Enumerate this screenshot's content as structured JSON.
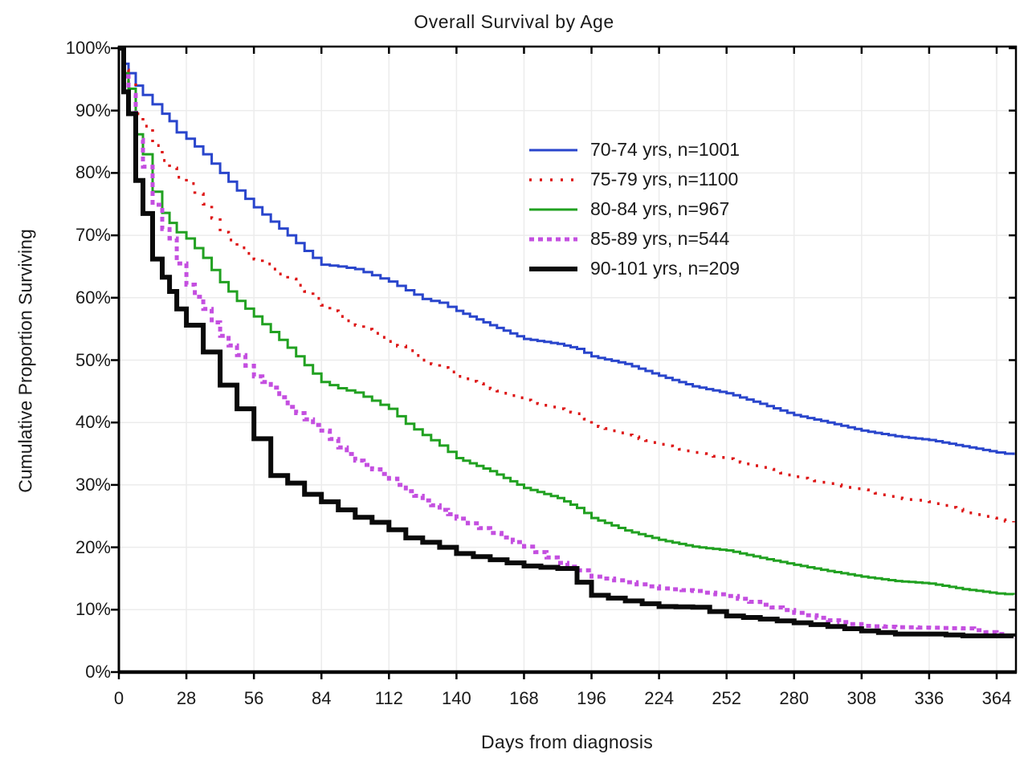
{
  "title": "Overall Survival by Age",
  "chart_data": {
    "type": "line",
    "subtype": "kaplan-meier-step-survival",
    "title": "Overall Survival by Age",
    "xlabel": "Days from diagnosis",
    "ylabel": "Cumulative Proportion Surviving",
    "x_max_days": 372,
    "ylim_percent": [
      0,
      100
    ],
    "grid": true,
    "grid_color": "#ececec",
    "frame_color": "#000000",
    "legend_position": "inside-upper-right",
    "x_ticks_days": [
      0,
      28,
      56,
      84,
      112,
      140,
      168,
      196,
      224,
      252,
      280,
      308,
      336,
      364
    ],
    "x_tick_labels": [
      "0",
      "28",
      "56",
      "84",
      "112",
      "140",
      "168",
      "196",
      "224",
      "252",
      "280",
      "308",
      "336",
      "364"
    ],
    "y_ticks_percent": [
      0,
      10,
      20,
      30,
      40,
      50,
      60,
      70,
      80,
      90,
      100
    ],
    "y_tick_labels": [
      "0%",
      "10%",
      "20%",
      "30%",
      "40%",
      "50%",
      "60%",
      "70%",
      "80%",
      "90%",
      "100%"
    ],
    "days": [
      0,
      2,
      4,
      7,
      10,
      14,
      18,
      21,
      24,
      28,
      35,
      42,
      49,
      56,
      63,
      70,
      77,
      84,
      91,
      98,
      105,
      112,
      119,
      126,
      133,
      140,
      154,
      168,
      182,
      190,
      196,
      210,
      224,
      238,
      252,
      266,
      280,
      294,
      308,
      322,
      336,
      350,
      364,
      371
    ],
    "series": [
      {
        "label": "70-74 yrs, n=1001",
        "age_group": "70-74 yrs",
        "n": 1001,
        "color": "#2945cc",
        "line_style": "solid",
        "line_width": 3,
        "values_percent": [
          100,
          97.5,
          96,
          94,
          92.5,
          91,
          89.5,
          88.3,
          86.5,
          85.5,
          83,
          80,
          77.2,
          74.5,
          72.2,
          70,
          67.5,
          65.3,
          65,
          64.6,
          63.6,
          62.6,
          61.2,
          59.8,
          59.2,
          57.9,
          55.6,
          53.4,
          52.6,
          51.8,
          50.6,
          49.4,
          47.5,
          45.8,
          44.7,
          43,
          41.2,
          40,
          38.7,
          37.8,
          37.2,
          36.2,
          35.2,
          34.8
        ]
      },
      {
        "label": "75-79 yrs, n=1100",
        "age_group": "75-79 yrs",
        "n": 1100,
        "color": "#dd1414",
        "line_style": "dotted",
        "line_width": 3.5,
        "values_percent": [
          100,
          96.5,
          94.5,
          89.5,
          87.5,
          84.4,
          82,
          80.8,
          79.3,
          78.3,
          75,
          70.5,
          68,
          66.2,
          64.6,
          63,
          61,
          58.8,
          57,
          55.6,
          54.3,
          53,
          51.5,
          50,
          48.8,
          47.4,
          45.4,
          43.6,
          42.2,
          41.4,
          39.7,
          38,
          36.5,
          35.2,
          34.2,
          32.8,
          31.3,
          30.2,
          29.2,
          27.9,
          27.3,
          25.8,
          24.4,
          24
        ]
      },
      {
        "label": "80-84 yrs, n=967",
        "age_group": "80-84 yrs",
        "n": 967,
        "color": "#21a121",
        "line_style": "solid",
        "line_width": 3,
        "values_percent": [
          100,
          96,
          93.5,
          86.2,
          83,
          77,
          73.6,
          72,
          70.5,
          69.5,
          66.4,
          62.5,
          59.5,
          57,
          54.5,
          52,
          49.2,
          46.5,
          45.5,
          44.8,
          43.5,
          42.2,
          39.8,
          38,
          36.3,
          34.3,
          32.2,
          29.5,
          27.9,
          26.3,
          24.7,
          22.7,
          21.2,
          20.1,
          19.5,
          18.3,
          17.2,
          16.2,
          15.3,
          14.6,
          14.2,
          13.3,
          12.6,
          12.4
        ]
      },
      {
        "label": "85-89 yrs, n=544",
        "age_group": "85-89 yrs",
        "n": 544,
        "color": "#c44fe0",
        "line_style": "square-dash",
        "line_width": 5,
        "values_percent": [
          100,
          95.5,
          92.5,
          85.3,
          81,
          74.9,
          71,
          69.5,
          65.5,
          62.1,
          58.2,
          53.9,
          50.8,
          47.4,
          45.6,
          42.5,
          40.5,
          38.7,
          36,
          33.9,
          32.5,
          31,
          29,
          27.5,
          26,
          24.6,
          22.3,
          20.1,
          17.5,
          16.3,
          15.3,
          14.4,
          13.4,
          13,
          12.2,
          10.8,
          9.5,
          8.3,
          7.4,
          7.2,
          7.1,
          7,
          6.1,
          5.5
        ]
      },
      {
        "label": "90-101 yrs, n=209",
        "age_group": "90-101 yrs",
        "n": 209,
        "color": "#0a0a0a",
        "line_style": "solid",
        "line_width": 6,
        "values_percent": [
          100,
          93,
          89.5,
          78.8,
          73.5,
          66.2,
          63.3,
          61,
          58.2,
          55.6,
          51.3,
          46,
          42.2,
          37.4,
          31.5,
          30.3,
          28.5,
          27.3,
          26,
          24.8,
          24,
          22.8,
          21.5,
          20.8,
          20,
          19,
          18,
          17,
          16.6,
          14.4,
          12.3,
          11.4,
          10.5,
          10.4,
          9,
          8.5,
          7.9,
          7.3,
          6.6,
          6.1,
          6.1,
          5.8,
          5.8,
          5.7
        ]
      }
    ]
  }
}
